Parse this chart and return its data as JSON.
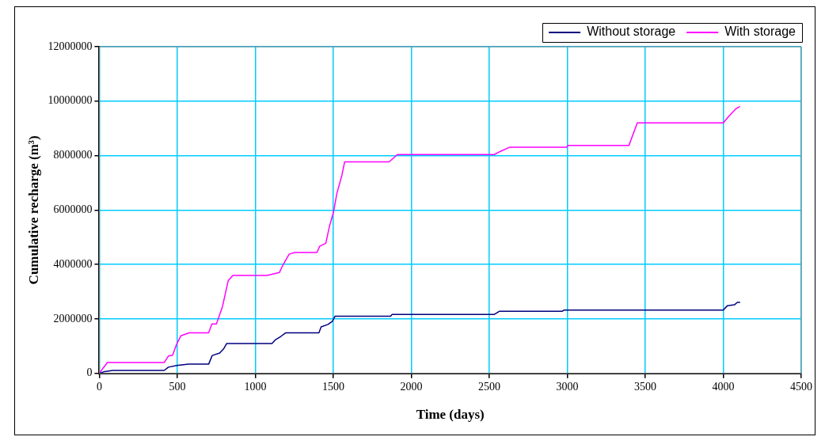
{
  "chart_data": {
    "type": "line",
    "xlabel": "Time (days)",
    "ylabel": "Cumulative recharge (m³)",
    "xlim": [
      0,
      4500
    ],
    "xticks": [
      0,
      500,
      1000,
      1500,
      2000,
      2500,
      3000,
      3500,
      4000,
      4500
    ],
    "ylim": [
      0,
      12000000
    ],
    "yticks": [
      0,
      2000000,
      4000000,
      6000000,
      8000000,
      10000000,
      12000000
    ],
    "grid": true,
    "legend": "top right",
    "marker": "none",
    "line_style": "solid",
    "series": [
      {
        "name": "Without storage",
        "color": "#000080",
        "x": [
          0,
          34,
          87,
          416,
          443,
          496,
          573,
          701,
          724,
          772,
          799,
          817,
          1107,
          1128,
          1164,
          1194,
          1408,
          1422,
          1466,
          1493,
          1511,
          1868,
          1877,
          2533,
          2564,
          2967,
          2980,
          4000,
          4027,
          4072,
          4090,
          4108
        ],
        "values": [
          0,
          70000,
          110000,
          110000,
          230000,
          290000,
          340000,
          340000,
          660000,
          750000,
          920000,
          1100000,
          1100000,
          1230000,
          1360000,
          1490000,
          1490000,
          1710000,
          1800000,
          1910000,
          2100000,
          2100000,
          2170000,
          2170000,
          2280000,
          2280000,
          2330000,
          2330000,
          2490000,
          2520000,
          2610000,
          2610000
        ]
      },
      {
        "name": "With storage",
        "color": "#ff00ff",
        "x": [
          0,
          25,
          52,
          416,
          443,
          470,
          496,
          523,
          576,
          701,
          722,
          751,
          790,
          826,
          856,
          1075,
          1155,
          1178,
          1217,
          1253,
          1395,
          1413,
          1452,
          1475,
          1502,
          1523,
          1555,
          1573,
          1858,
          1911,
          2533,
          2569,
          2632,
          2995,
          3004,
          3395,
          3449,
          4000,
          4036,
          4081,
          4108
        ],
        "values": [
          0,
          200000,
          400000,
          400000,
          640000,
          670000,
          1080000,
          1380000,
          1490000,
          1490000,
          1820000,
          1820000,
          2460000,
          3400000,
          3600000,
          3600000,
          3710000,
          3990000,
          4380000,
          4440000,
          4440000,
          4670000,
          4780000,
          5390000,
          5940000,
          6610000,
          7270000,
          7770000,
          7770000,
          8040000,
          8040000,
          8150000,
          8310000,
          8310000,
          8370000,
          8370000,
          9200000,
          9200000,
          9450000,
          9720000,
          9810000
        ]
      }
    ]
  }
}
